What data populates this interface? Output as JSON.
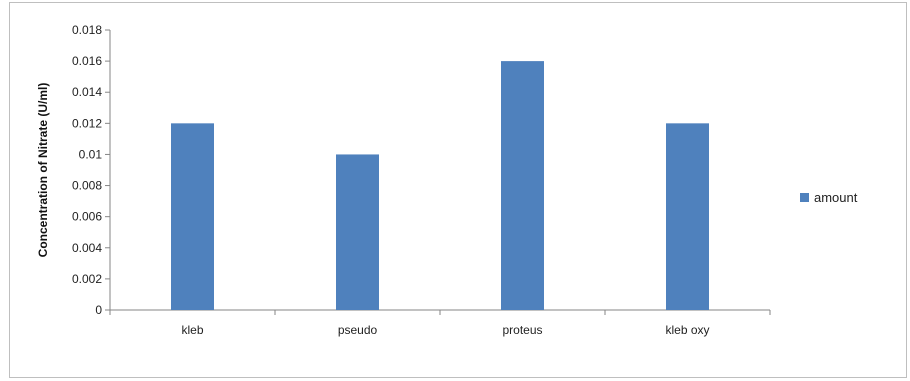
{
  "chart_data": {
    "type": "bar",
    "categories": [
      "kleb",
      "pseudo",
      "proteus",
      "kleb oxy"
    ],
    "series": [
      {
        "name": "amount",
        "values": [
          0.012,
          0.01,
          0.016,
          0.012
        ],
        "color": "#4f81bd"
      }
    ],
    "title": "",
    "xlabel": "",
    "ylabel": "Concentration of Nitrate (U/ml)",
    "ylim": [
      0,
      0.018
    ],
    "yticks": [
      0,
      0.002,
      0.004,
      0.006,
      0.008,
      0.01,
      0.012,
      0.014,
      0.016,
      0.018
    ],
    "ytick_labels": [
      "0",
      "0.002",
      "0.004",
      "0.006",
      "0.008",
      "0.01",
      "0.012",
      "0.014",
      "0.016",
      "0.018"
    ],
    "grid": false,
    "legend_position": "right"
  }
}
